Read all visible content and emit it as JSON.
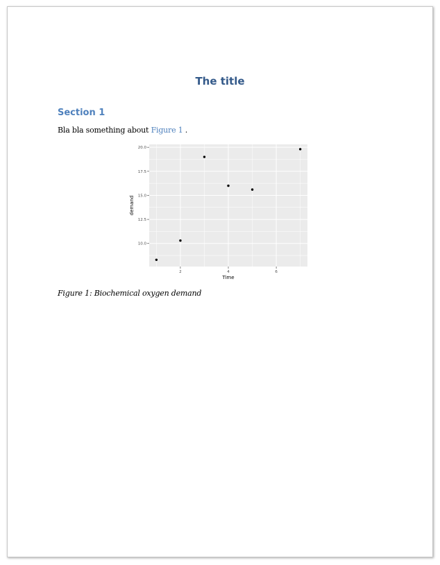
{
  "document": {
    "title": "The title",
    "section_heading": "Section 1",
    "body_text_prefix": "Bla bla something about ",
    "figure_link": "Figure 1",
    "body_text_suffix": " .",
    "caption": "Figure 1: Biochemical oxygen demand"
  },
  "colors": {
    "title": "#345a8a",
    "heading": "#4f81bd",
    "link": "#4f81bd",
    "plot_panel": "#ebebeb",
    "gridline": "#ffffff",
    "point": "#000000"
  },
  "chart_data": {
    "type": "scatter",
    "xlabel": "Time",
    "ylabel": "demand",
    "xlim": [
      0.7,
      7.3
    ],
    "ylim": [
      7.6,
      20.3
    ],
    "xticks": [
      2,
      4,
      6
    ],
    "xtick_labels": [
      "2",
      "4",
      "6"
    ],
    "yticks": [
      10.0,
      12.5,
      15.0,
      17.5,
      20.0
    ],
    "ytick_labels": [
      "10.0",
      "12.5",
      "15.0",
      "17.5",
      "20.0"
    ],
    "grid": true,
    "x": [
      1,
      2,
      3,
      4,
      5,
      7
    ],
    "y": [
      8.3,
      10.3,
      19.0,
      16.0,
      15.6,
      19.8
    ]
  }
}
